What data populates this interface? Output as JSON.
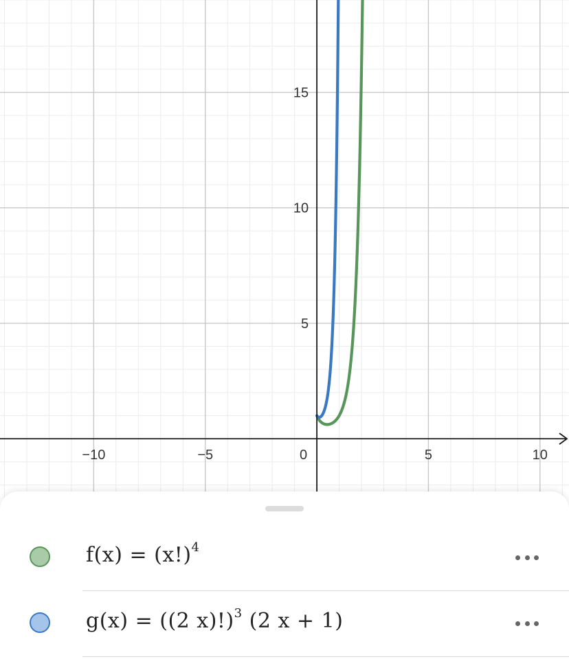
{
  "graph": {
    "axis_color": "#1a1a1a",
    "major_grid_color": "#c8c8c8",
    "minor_grid_color": "#ececec",
    "x_range": [
      -14.2,
      11.3
    ],
    "y_range": [
      -3.0,
      19.0
    ],
    "x_ticks": [
      {
        "value": -10,
        "label": "−10"
      },
      {
        "value": -5,
        "label": "−5"
      },
      {
        "value": 5,
        "label": "5"
      },
      {
        "value": 10,
        "label": "10"
      }
    ],
    "y_ticks": [
      {
        "value": 5,
        "label": "5"
      },
      {
        "value": 10,
        "label": "10"
      },
      {
        "value": 15,
        "label": "15"
      }
    ],
    "origin_label": "0"
  },
  "algebra": {
    "items": [
      {
        "name": "f",
        "prefix": "f(x) = (x!)",
        "exponent": "4",
        "suffix": "",
        "color": "#57955a",
        "fill": "#a9cba8"
      },
      {
        "name": "g",
        "prefix": "g(x) = ((2 x)!)",
        "exponent": "3",
        "suffix": " (2 x + 1)",
        "color": "#3b78c2",
        "fill": "#a5c4ea"
      }
    ],
    "more_icon": "more-horizontal-icon"
  }
}
